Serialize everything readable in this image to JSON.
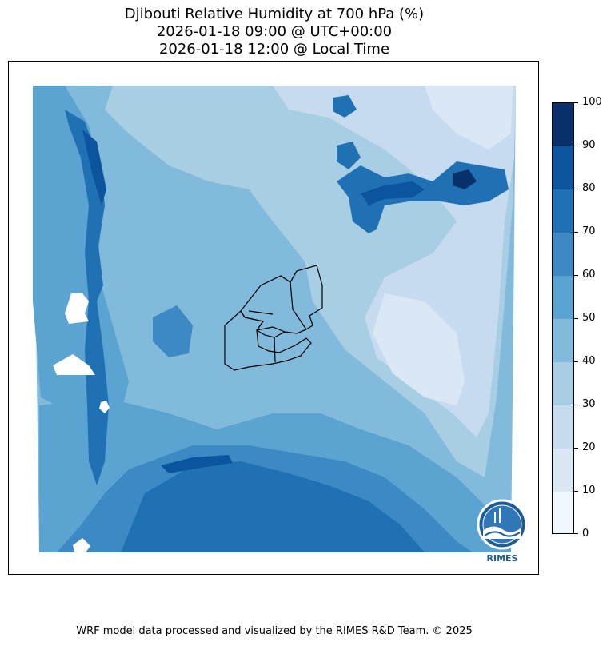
{
  "title": {
    "line1": "Djibouti Relative Humidity at 700 hPa (%)",
    "line2": "2026-01-18 09:00 @ UTC+00:00",
    "line3": "2026-01-18 12:00 @ Local Time"
  },
  "colorbar": {
    "ticks": [
      "0",
      "10",
      "20",
      "30",
      "40",
      "50",
      "60",
      "70",
      "80",
      "90",
      "100"
    ],
    "range": [
      0,
      100
    ],
    "levels": [
      {
        "min": 0,
        "max": 10,
        "color": "#f1f7fe"
      },
      {
        "min": 10,
        "max": 20,
        "color": "#dae8f6"
      },
      {
        "min": 20,
        "max": 30,
        "color": "#c6dbef"
      },
      {
        "min": 30,
        "max": 40,
        "color": "#a8cee4"
      },
      {
        "min": 40,
        "max": 50,
        "color": "#82badb"
      },
      {
        "min": 50,
        "max": 60,
        "color": "#5ba3d0"
      },
      {
        "min": 60,
        "max": 70,
        "color": "#3c89c3"
      },
      {
        "min": 70,
        "max": 80,
        "color": "#2070b4"
      },
      {
        "min": 80,
        "max": 90,
        "color": "#0c559e"
      },
      {
        "min": 90,
        "max": 100,
        "color": "#08306b"
      }
    ]
  },
  "map": {
    "country": "Djibouti",
    "variable": "Relative Humidity",
    "pressure_level": "700 hPa",
    "units": "%",
    "border_color": "#000000"
  },
  "logo": {
    "text": "RIMES"
  },
  "footer": {
    "credit": "WRF model data processed and visualized by the RIMES R&D Team. © 2025"
  }
}
